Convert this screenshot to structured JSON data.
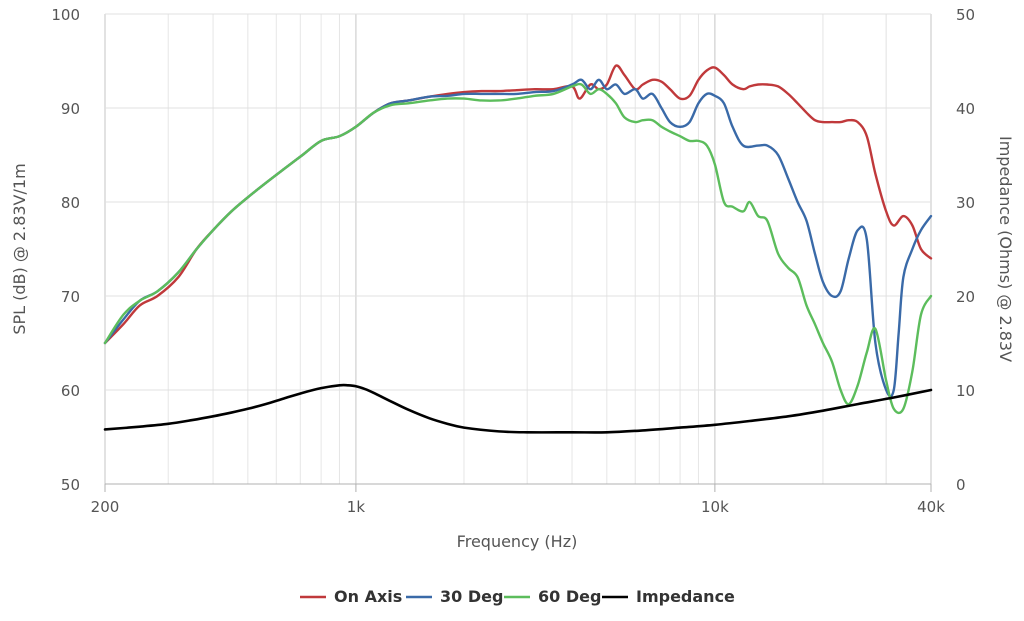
{
  "chart_data": {
    "type": "line",
    "xlabel": "Frequency (Hz)",
    "ylabel_left": "SPL (dB) @ 2.83V/1m",
    "ylabel_right": "Impedance (Ohms) @ 2.83V",
    "x_scale": "log",
    "xlim": [
      200,
      40000
    ],
    "ylim_left": [
      50,
      100
    ],
    "ylim_right": [
      0,
      50
    ],
    "x_ticks": [
      200,
      1000,
      10000,
      40000
    ],
    "x_tick_labels": [
      "200",
      "1k",
      "10k",
      "40k"
    ],
    "y_left_ticks": [
      50,
      60,
      70,
      80,
      90,
      100
    ],
    "y_left_tick_labels": [
      "50",
      "60",
      "70",
      "80",
      "90",
      "100"
    ],
    "y_right_ticks": [
      0,
      10,
      20,
      30,
      40,
      50
    ],
    "y_right_tick_labels": [
      "0",
      "10",
      "20",
      "30",
      "40",
      "50"
    ],
    "grid": true,
    "legend_position": "bottom",
    "series": [
      {
        "name": "On Axis",
        "axis": "left",
        "color": "#c0393b",
        "x": [
          200,
          225,
          250,
          280,
          320,
          360,
          400,
          450,
          500,
          560,
          630,
          710,
          800,
          900,
          1000,
          1120,
          1250,
          1400,
          1600,
          1800,
          2000,
          2240,
          2500,
          2800,
          3150,
          3550,
          4000,
          4200,
          4500,
          4750,
          5000,
          5300,
          5600,
          6000,
          6300,
          6700,
          7100,
          7500,
          8000,
          8500,
          9000,
          9500,
          10000,
          10600,
          11200,
          12000,
          12500,
          13200,
          14000,
          15000,
          16000,
          17000,
          18000,
          19000,
          20000,
          21200,
          22400,
          23600,
          25000,
          26500,
          28000,
          30000,
          31500,
          33500,
          35500,
          37500,
          40000
        ],
        "values": [
          65,
          67,
          69,
          70,
          72,
          75,
          77,
          79,
          80.5,
          82,
          83.5,
          85,
          86.5,
          87,
          88,
          89.5,
          90.5,
          90.8,
          91.2,
          91.5,
          91.7,
          91.8,
          91.8,
          91.9,
          92,
          92,
          92.3,
          91,
          92.5,
          92,
          92.5,
          94.5,
          93.5,
          92,
          92.5,
          93,
          92.8,
          92,
          91,
          91.3,
          93,
          94,
          94.3,
          93.5,
          92.5,
          92,
          92.3,
          92.5,
          92.5,
          92.3,
          91.5,
          90.5,
          89.5,
          88.7,
          88.5,
          88.5,
          88.5,
          88.7,
          88.5,
          87,
          83,
          79,
          77.5,
          78.5,
          77.5,
          75,
          74
        ]
      },
      {
        "name": "30 Deg",
        "axis": "left",
        "color": "#3a6aa8",
        "x": [
          200,
          225,
          250,
          280,
          320,
          360,
          400,
          450,
          500,
          560,
          630,
          710,
          800,
          900,
          1000,
          1120,
          1250,
          1400,
          1600,
          1800,
          2000,
          2240,
          2500,
          2800,
          3150,
          3550,
          4000,
          4250,
          4500,
          4750,
          5000,
          5300,
          5600,
          6000,
          6300,
          6700,
          7100,
          7500,
          8000,
          8500,
          9000,
          9500,
          10000,
          10600,
          11200,
          12000,
          13200,
          14000,
          15000,
          16000,
          17000,
          18000,
          19000,
          20000,
          21200,
          22400,
          23600,
          25000,
          26500,
          28000,
          30000,
          31500,
          32500,
          33500,
          35500,
          37500,
          40000
        ],
        "values": [
          65,
          67.5,
          69.5,
          70.5,
          72.5,
          75,
          77,
          79,
          80.5,
          82,
          83.5,
          85,
          86.5,
          87,
          88,
          89.5,
          90.5,
          90.8,
          91.2,
          91.3,
          91.5,
          91.5,
          91.5,
          91.5,
          91.7,
          91.8,
          92.5,
          93,
          92,
          93,
          92,
          92.5,
          91.5,
          92,
          91,
          91.5,
          90,
          88.5,
          88,
          88.5,
          90.5,
          91.5,
          91.3,
          90.5,
          88,
          86,
          86,
          86,
          85,
          82.5,
          80,
          78,
          74.5,
          71.5,
          70,
          70.5,
          74,
          77,
          76,
          65,
          60,
          60,
          66,
          72,
          75,
          77,
          78.5
        ]
      },
      {
        "name": "60 Deg",
        "axis": "left",
        "color": "#5cbd5c",
        "x": [
          200,
          225,
          250,
          280,
          320,
          360,
          400,
          450,
          500,
          560,
          630,
          710,
          800,
          900,
          1000,
          1120,
          1250,
          1400,
          1600,
          1800,
          2000,
          2240,
          2500,
          2800,
          3150,
          3550,
          4000,
          4250,
          4500,
          4750,
          5000,
          5300,
          5600,
          6000,
          6300,
          6700,
          7100,
          7500,
          8000,
          8500,
          9000,
          9500,
          10000,
          10600,
          11200,
          12000,
          12500,
          13200,
          14000,
          15000,
          16000,
          17000,
          18000,
          19000,
          20000,
          21200,
          22400,
          23600,
          25000,
          26500,
          28000,
          30000,
          31500,
          33500,
          35500,
          37500,
          40000
        ],
        "values": [
          65,
          68,
          69.5,
          70.5,
          72.5,
          75,
          77,
          79,
          80.5,
          82,
          83.5,
          85,
          86.5,
          87,
          88,
          89.5,
          90.3,
          90.5,
          90.8,
          91,
          91,
          90.8,
          90.8,
          91,
          91.3,
          91.5,
          92.3,
          92.5,
          91.5,
          92,
          91.5,
          90.5,
          89,
          88.5,
          88.7,
          88.7,
          88,
          87.5,
          87,
          86.5,
          86.5,
          86,
          84,
          80,
          79.5,
          79,
          80,
          78.5,
          78,
          74.5,
          73,
          72,
          69,
          67,
          65,
          63,
          60,
          58.5,
          60.5,
          64,
          66.5,
          61,
          58,
          58,
          62,
          68,
          70
        ]
      },
      {
        "name": "Impedance",
        "axis": "right",
        "color": "#000000",
        "x": [
          200,
          250,
          300,
          350,
          400,
          450,
          500,
          560,
          630,
          710,
          800,
          900,
          950,
          1000,
          1060,
          1120,
          1250,
          1400,
          1600,
          1800,
          2000,
          2500,
          3000,
          4000,
          5000,
          6300,
          8000,
          10000,
          12500,
          16000,
          20000,
          25000,
          31500,
          40000
        ],
        "values": [
          5.8,
          6.1,
          6.4,
          6.8,
          7.2,
          7.6,
          8,
          8.5,
          9.1,
          9.7,
          10.2,
          10.5,
          10.5,
          10.4,
          10.1,
          9.7,
          8.8,
          7.9,
          7.0,
          6.4,
          6.0,
          5.6,
          5.5,
          5.5,
          5.5,
          5.7,
          6.0,
          6.3,
          6.7,
          7.2,
          7.8,
          8.5,
          9.2,
          10
        ]
      }
    ]
  }
}
